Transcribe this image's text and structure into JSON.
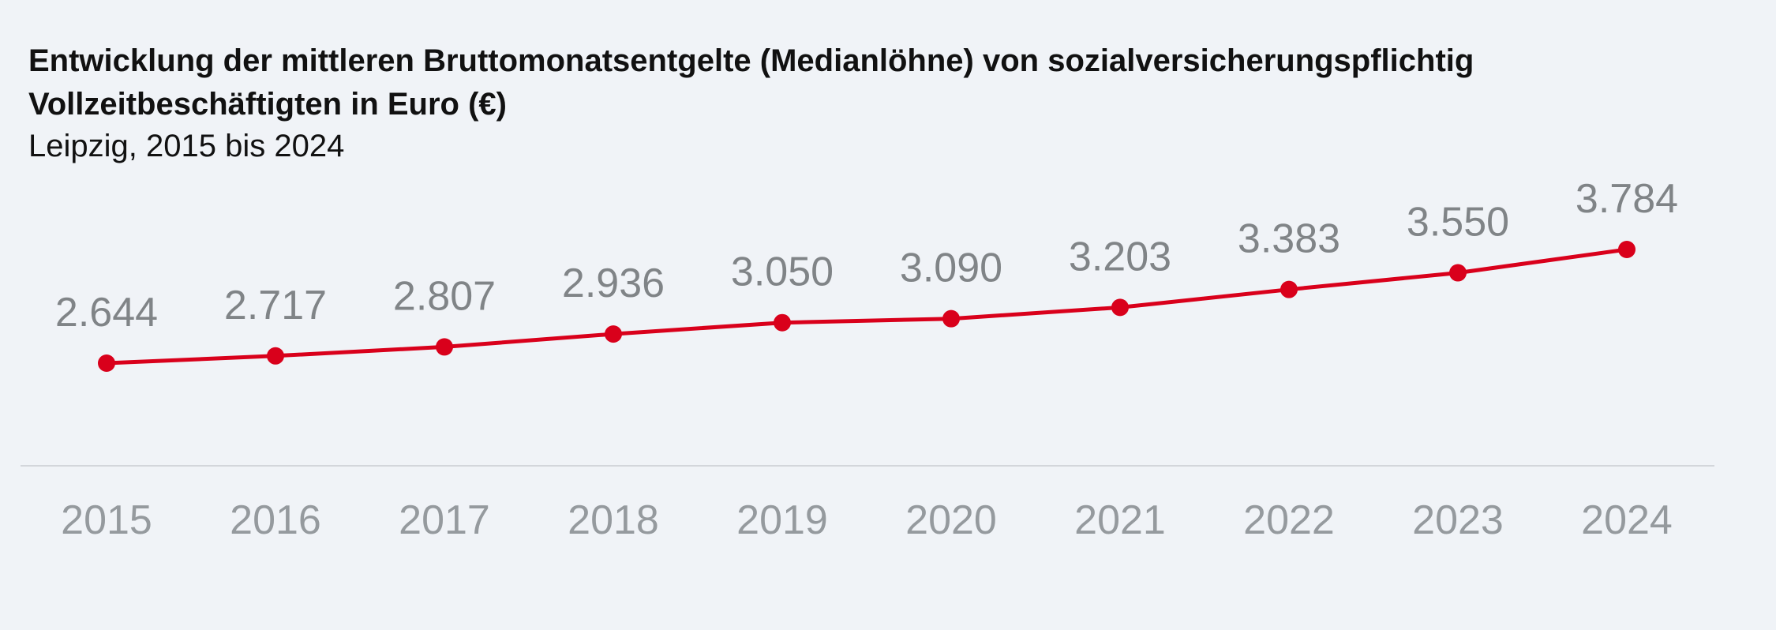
{
  "chart_data": {
    "type": "line",
    "title": "Entwicklung der mittleren Bruttomonatsentgelte (Medianlöhne) von sozialversicherungspflichtig Vollzeitbeschäftigten in Euro (€)",
    "subtitle": "Leipzig, 2015 bis 2024",
    "categories": [
      "2015",
      "2016",
      "2017",
      "2018",
      "2019",
      "2020",
      "2021",
      "2022",
      "2023",
      "2024"
    ],
    "values": [
      2644,
      2717,
      2807,
      2936,
      3050,
      3090,
      3203,
      3383,
      3550,
      3784
    ],
    "value_labels": [
      "2.644",
      "2.717",
      "2.807",
      "2.936",
      "3.050",
      "3.090",
      "3.203",
      "3.383",
      "3.550",
      "3.784"
    ],
    "xlabel": "",
    "ylabel": "",
    "y_axis_visible": false,
    "grid": false,
    "legend": "none",
    "colors": {
      "line": "#d9001b",
      "background": "#f0f3f7",
      "baseline": "#d3d6db"
    }
  }
}
